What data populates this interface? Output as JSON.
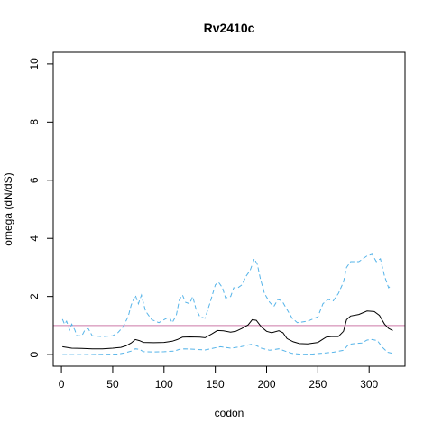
{
  "chart_data": {
    "type": "line",
    "title": "Rv2410c",
    "xlabel": "codon",
    "ylabel": "omega (dN/dS)",
    "xlim": [
      -8,
      335
    ],
    "ylim": [
      -0.4,
      10.4
    ],
    "x_ticks": [
      0,
      50,
      100,
      150,
      200,
      250,
      300
    ],
    "y_ticks": [
      0,
      2,
      4,
      6,
      8,
      10
    ],
    "reference_line": {
      "y": 1,
      "color": "#cc79a7"
    },
    "grid": false,
    "series": [
      {
        "role": "estimate",
        "color": "#000000",
        "dash": "solid",
        "points": [
          [
            1,
            0.27
          ],
          [
            10,
            0.22
          ],
          [
            20,
            0.21
          ],
          [
            30,
            0.2
          ],
          [
            40,
            0.2
          ],
          [
            50,
            0.22
          ],
          [
            58,
            0.25
          ],
          [
            63,
            0.3
          ],
          [
            68,
            0.4
          ],
          [
            72,
            0.52
          ],
          [
            76,
            0.48
          ],
          [
            80,
            0.42
          ],
          [
            90,
            0.41
          ],
          [
            100,
            0.42
          ],
          [
            108,
            0.46
          ],
          [
            113,
            0.52
          ],
          [
            118,
            0.6
          ],
          [
            125,
            0.61
          ],
          [
            135,
            0.6
          ],
          [
            140,
            0.58
          ],
          [
            147,
            0.72
          ],
          [
            152,
            0.83
          ],
          [
            158,
            0.82
          ],
          [
            165,
            0.77
          ],
          [
            170,
            0.8
          ],
          [
            176,
            0.9
          ],
          [
            182,
            1.02
          ],
          [
            186,
            1.2
          ],
          [
            190,
            1.18
          ],
          [
            195,
            0.95
          ],
          [
            200,
            0.8
          ],
          [
            205,
            0.75
          ],
          [
            212,
            0.82
          ],
          [
            216,
            0.75
          ],
          [
            220,
            0.55
          ],
          [
            226,
            0.44
          ],
          [
            232,
            0.38
          ],
          [
            240,
            0.37
          ],
          [
            250,
            0.42
          ],
          [
            258,
            0.6
          ],
          [
            263,
            0.62
          ],
          [
            270,
            0.62
          ],
          [
            275,
            0.8
          ],
          [
            278,
            1.2
          ],
          [
            282,
            1.33
          ],
          [
            290,
            1.38
          ],
          [
            298,
            1.5
          ],
          [
            305,
            1.48
          ],
          [
            310,
            1.35
          ],
          [
            315,
            1.05
          ],
          [
            319,
            0.9
          ],
          [
            323,
            0.83
          ]
        ]
      },
      {
        "role": "upper",
        "color": "#56b4e9",
        "dash": "dashed",
        "points": [
          [
            1,
            1.22
          ],
          [
            3,
            1.05
          ],
          [
            5,
            1.15
          ],
          [
            8,
            0.85
          ],
          [
            10,
            1.05
          ],
          [
            13,
            0.85
          ],
          [
            15,
            0.65
          ],
          [
            20,
            0.65
          ],
          [
            23,
            0.85
          ],
          [
            26,
            0.9
          ],
          [
            30,
            0.65
          ],
          [
            40,
            0.62
          ],
          [
            50,
            0.65
          ],
          [
            55,
            0.75
          ],
          [
            60,
            0.95
          ],
          [
            65,
            1.3
          ],
          [
            68,
            1.7
          ],
          [
            72,
            2.05
          ],
          [
            75,
            1.75
          ],
          [
            78,
            2.05
          ],
          [
            82,
            1.5
          ],
          [
            88,
            1.2
          ],
          [
            95,
            1.1
          ],
          [
            100,
            1.2
          ],
          [
            105,
            1.3
          ],
          [
            108,
            1.1
          ],
          [
            112,
            1.35
          ],
          [
            115,
            1.9
          ],
          [
            118,
            2.05
          ],
          [
            121,
            1.8
          ],
          [
            125,
            1.75
          ],
          [
            128,
            2.0
          ],
          [
            131,
            1.6
          ],
          [
            135,
            1.3
          ],
          [
            140,
            1.25
          ],
          [
            145,
            1.8
          ],
          [
            150,
            2.4
          ],
          [
            153,
            2.5
          ],
          [
            157,
            2.3
          ],
          [
            160,
            1.95
          ],
          [
            165,
            2.0
          ],
          [
            168,
            2.3
          ],
          [
            172,
            2.3
          ],
          [
            176,
            2.4
          ],
          [
            180,
            2.7
          ],
          [
            184,
            2.9
          ],
          [
            188,
            3.3
          ],
          [
            191,
            3.1
          ],
          [
            194,
            2.6
          ],
          [
            198,
            2.1
          ],
          [
            203,
            1.8
          ],
          [
            207,
            1.65
          ],
          [
            211,
            1.9
          ],
          [
            215,
            1.85
          ],
          [
            220,
            1.55
          ],
          [
            225,
            1.25
          ],
          [
            230,
            1.1
          ],
          [
            240,
            1.15
          ],
          [
            250,
            1.3
          ],
          [
            255,
            1.75
          ],
          [
            260,
            1.9
          ],
          [
            265,
            1.85
          ],
          [
            270,
            2.1
          ],
          [
            275,
            2.5
          ],
          [
            278,
            3.0
          ],
          [
            282,
            3.2
          ],
          [
            290,
            3.2
          ],
          [
            298,
            3.4
          ],
          [
            303,
            3.45
          ],
          [
            307,
            3.2
          ],
          [
            311,
            3.3
          ],
          [
            315,
            2.7
          ],
          [
            319,
            2.3
          ],
          [
            322,
            2.4
          ]
        ]
      },
      {
        "role": "lower",
        "color": "#56b4e9",
        "dash": "dashed",
        "points": [
          [
            1,
            0.0
          ],
          [
            20,
            0.0
          ],
          [
            40,
            0.01
          ],
          [
            55,
            0.02
          ],
          [
            62,
            0.06
          ],
          [
            68,
            0.12
          ],
          [
            72,
            0.2
          ],
          [
            76,
            0.18
          ],
          [
            80,
            0.1
          ],
          [
            90,
            0.09
          ],
          [
            100,
            0.1
          ],
          [
            110,
            0.12
          ],
          [
            115,
            0.18
          ],
          [
            120,
            0.2
          ],
          [
            130,
            0.18
          ],
          [
            140,
            0.16
          ],
          [
            148,
            0.22
          ],
          [
            155,
            0.27
          ],
          [
            165,
            0.22
          ],
          [
            175,
            0.27
          ],
          [
            185,
            0.35
          ],
          [
            189,
            0.33
          ],
          [
            195,
            0.22
          ],
          [
            203,
            0.15
          ],
          [
            212,
            0.2
          ],
          [
            218,
            0.12
          ],
          [
            225,
            0.04
          ],
          [
            235,
            0.01
          ],
          [
            245,
            0.02
          ],
          [
            255,
            0.05
          ],
          [
            265,
            0.08
          ],
          [
            275,
            0.15
          ],
          [
            280,
            0.35
          ],
          [
            286,
            0.38
          ],
          [
            293,
            0.4
          ],
          [
            298,
            0.5
          ],
          [
            303,
            0.52
          ],
          [
            308,
            0.48
          ],
          [
            313,
            0.25
          ],
          [
            318,
            0.08
          ],
          [
            323,
            0.04
          ]
        ]
      }
    ]
  }
}
